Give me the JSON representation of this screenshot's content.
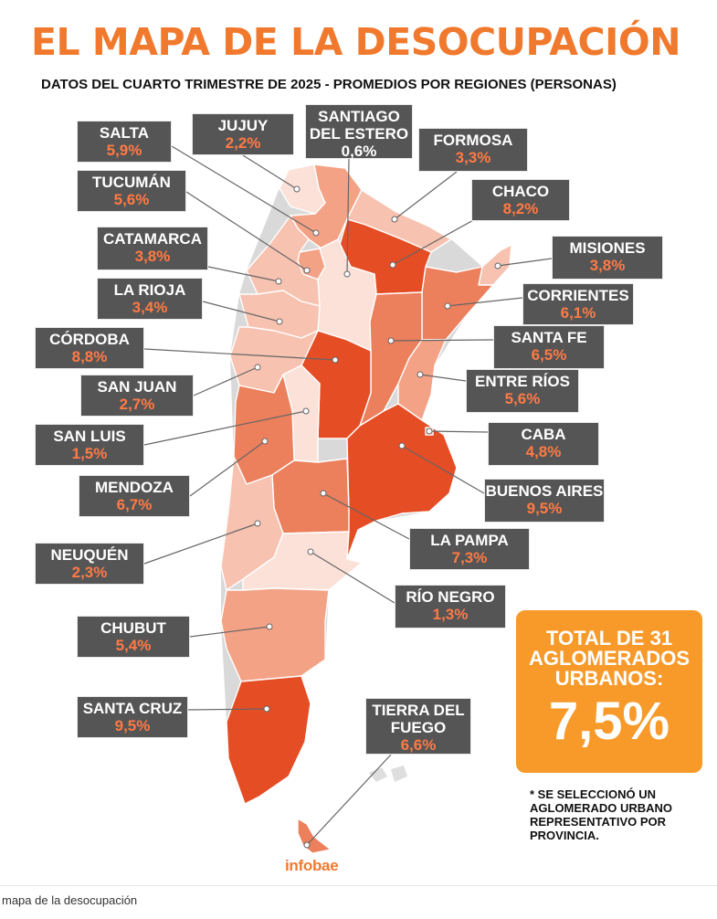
{
  "title": "EL MAPA DE LA DESOCUPACIÓN",
  "subtitle": "DATOS DEL CUARTO TRIMESTRE DE 2025 - PROMEDIOS POR REGIONES (PERSONAS)",
  "colors": {
    "title": "#f0792d",
    "label_box": "#555555",
    "percent_text": "#ff7a45",
    "total_box": "#f89a2a",
    "scale": [
      "#fbe1d8",
      "#f7c2b0",
      "#f4a286",
      "#ec7f5c",
      "#e54d25"
    ]
  },
  "provinces": [
    {
      "key": "salta",
      "name": "SALTA",
      "value": "5,9%"
    },
    {
      "key": "jujuy",
      "name": "JUJUY",
      "value": "2,2%"
    },
    {
      "key": "santiago",
      "name": "SANTIAGO DEL ESTERO",
      "name_lines": [
        "SANTIAGO",
        "DEL ESTERO"
      ],
      "value": "0,6%"
    },
    {
      "key": "formosa",
      "name": "FORMOSA",
      "value": "3,3%"
    },
    {
      "key": "tucuman",
      "name": "TUCUMÁN",
      "value": "5,6%"
    },
    {
      "key": "chaco",
      "name": "CHACO",
      "value": "8,2%"
    },
    {
      "key": "catamarca",
      "name": "CATAMARCA",
      "value": "3,8%"
    },
    {
      "key": "misiones",
      "name": "MISIONES",
      "value": "3,8%"
    },
    {
      "key": "larioja",
      "name": "LA RIOJA",
      "value": "3,4%"
    },
    {
      "key": "corrientes",
      "name": "CORRIENTES",
      "value": "6,1%"
    },
    {
      "key": "cordoba",
      "name": "CÓRDOBA",
      "value": "8,8%"
    },
    {
      "key": "santafe",
      "name": "SANTA FE",
      "value": "6,5%"
    },
    {
      "key": "sanjuan",
      "name": "SAN JUAN",
      "value": "2,7%"
    },
    {
      "key": "entrerios",
      "name": "ENTRE RÍOS",
      "value": "5,6%"
    },
    {
      "key": "sanluis",
      "name": "SAN LUIS",
      "value": "1,5%"
    },
    {
      "key": "caba",
      "name": "CABA",
      "value": "4,8%"
    },
    {
      "key": "mendoza",
      "name": "MENDOZA",
      "value": "6,7%"
    },
    {
      "key": "buenosaires",
      "name": "BUENOS AIRES",
      "value": "9,5%"
    },
    {
      "key": "lapampa",
      "name": "LA PAMPA",
      "value": "7,3%"
    },
    {
      "key": "neuquen",
      "name": "NEUQUÉN",
      "value": "2,3%"
    },
    {
      "key": "rionegro",
      "name": "RÍO NEGRO",
      "value": "1,3%"
    },
    {
      "key": "chubut",
      "name": "CHUBUT",
      "value": "5,4%"
    },
    {
      "key": "santacruz",
      "name": "SANTA CRUZ",
      "value": "9,5%"
    },
    {
      "key": "tierradelfuego",
      "name": "TIERRA DEL FUEGO",
      "name_lines": [
        "TIERRA DEL",
        "FUEGO"
      ],
      "value": "6,6%"
    }
  ],
  "total": {
    "label": "TOTAL DE 31 AGLOMERADOS URBANOS:",
    "value": "7,5%"
  },
  "note": "* SE SELECCIONÓ UN AGLOMERADO URBANO REPRESENTATIVO POR PROVINCIA.",
  "brand": "infobae",
  "caption": "mapa de la desocupación"
}
